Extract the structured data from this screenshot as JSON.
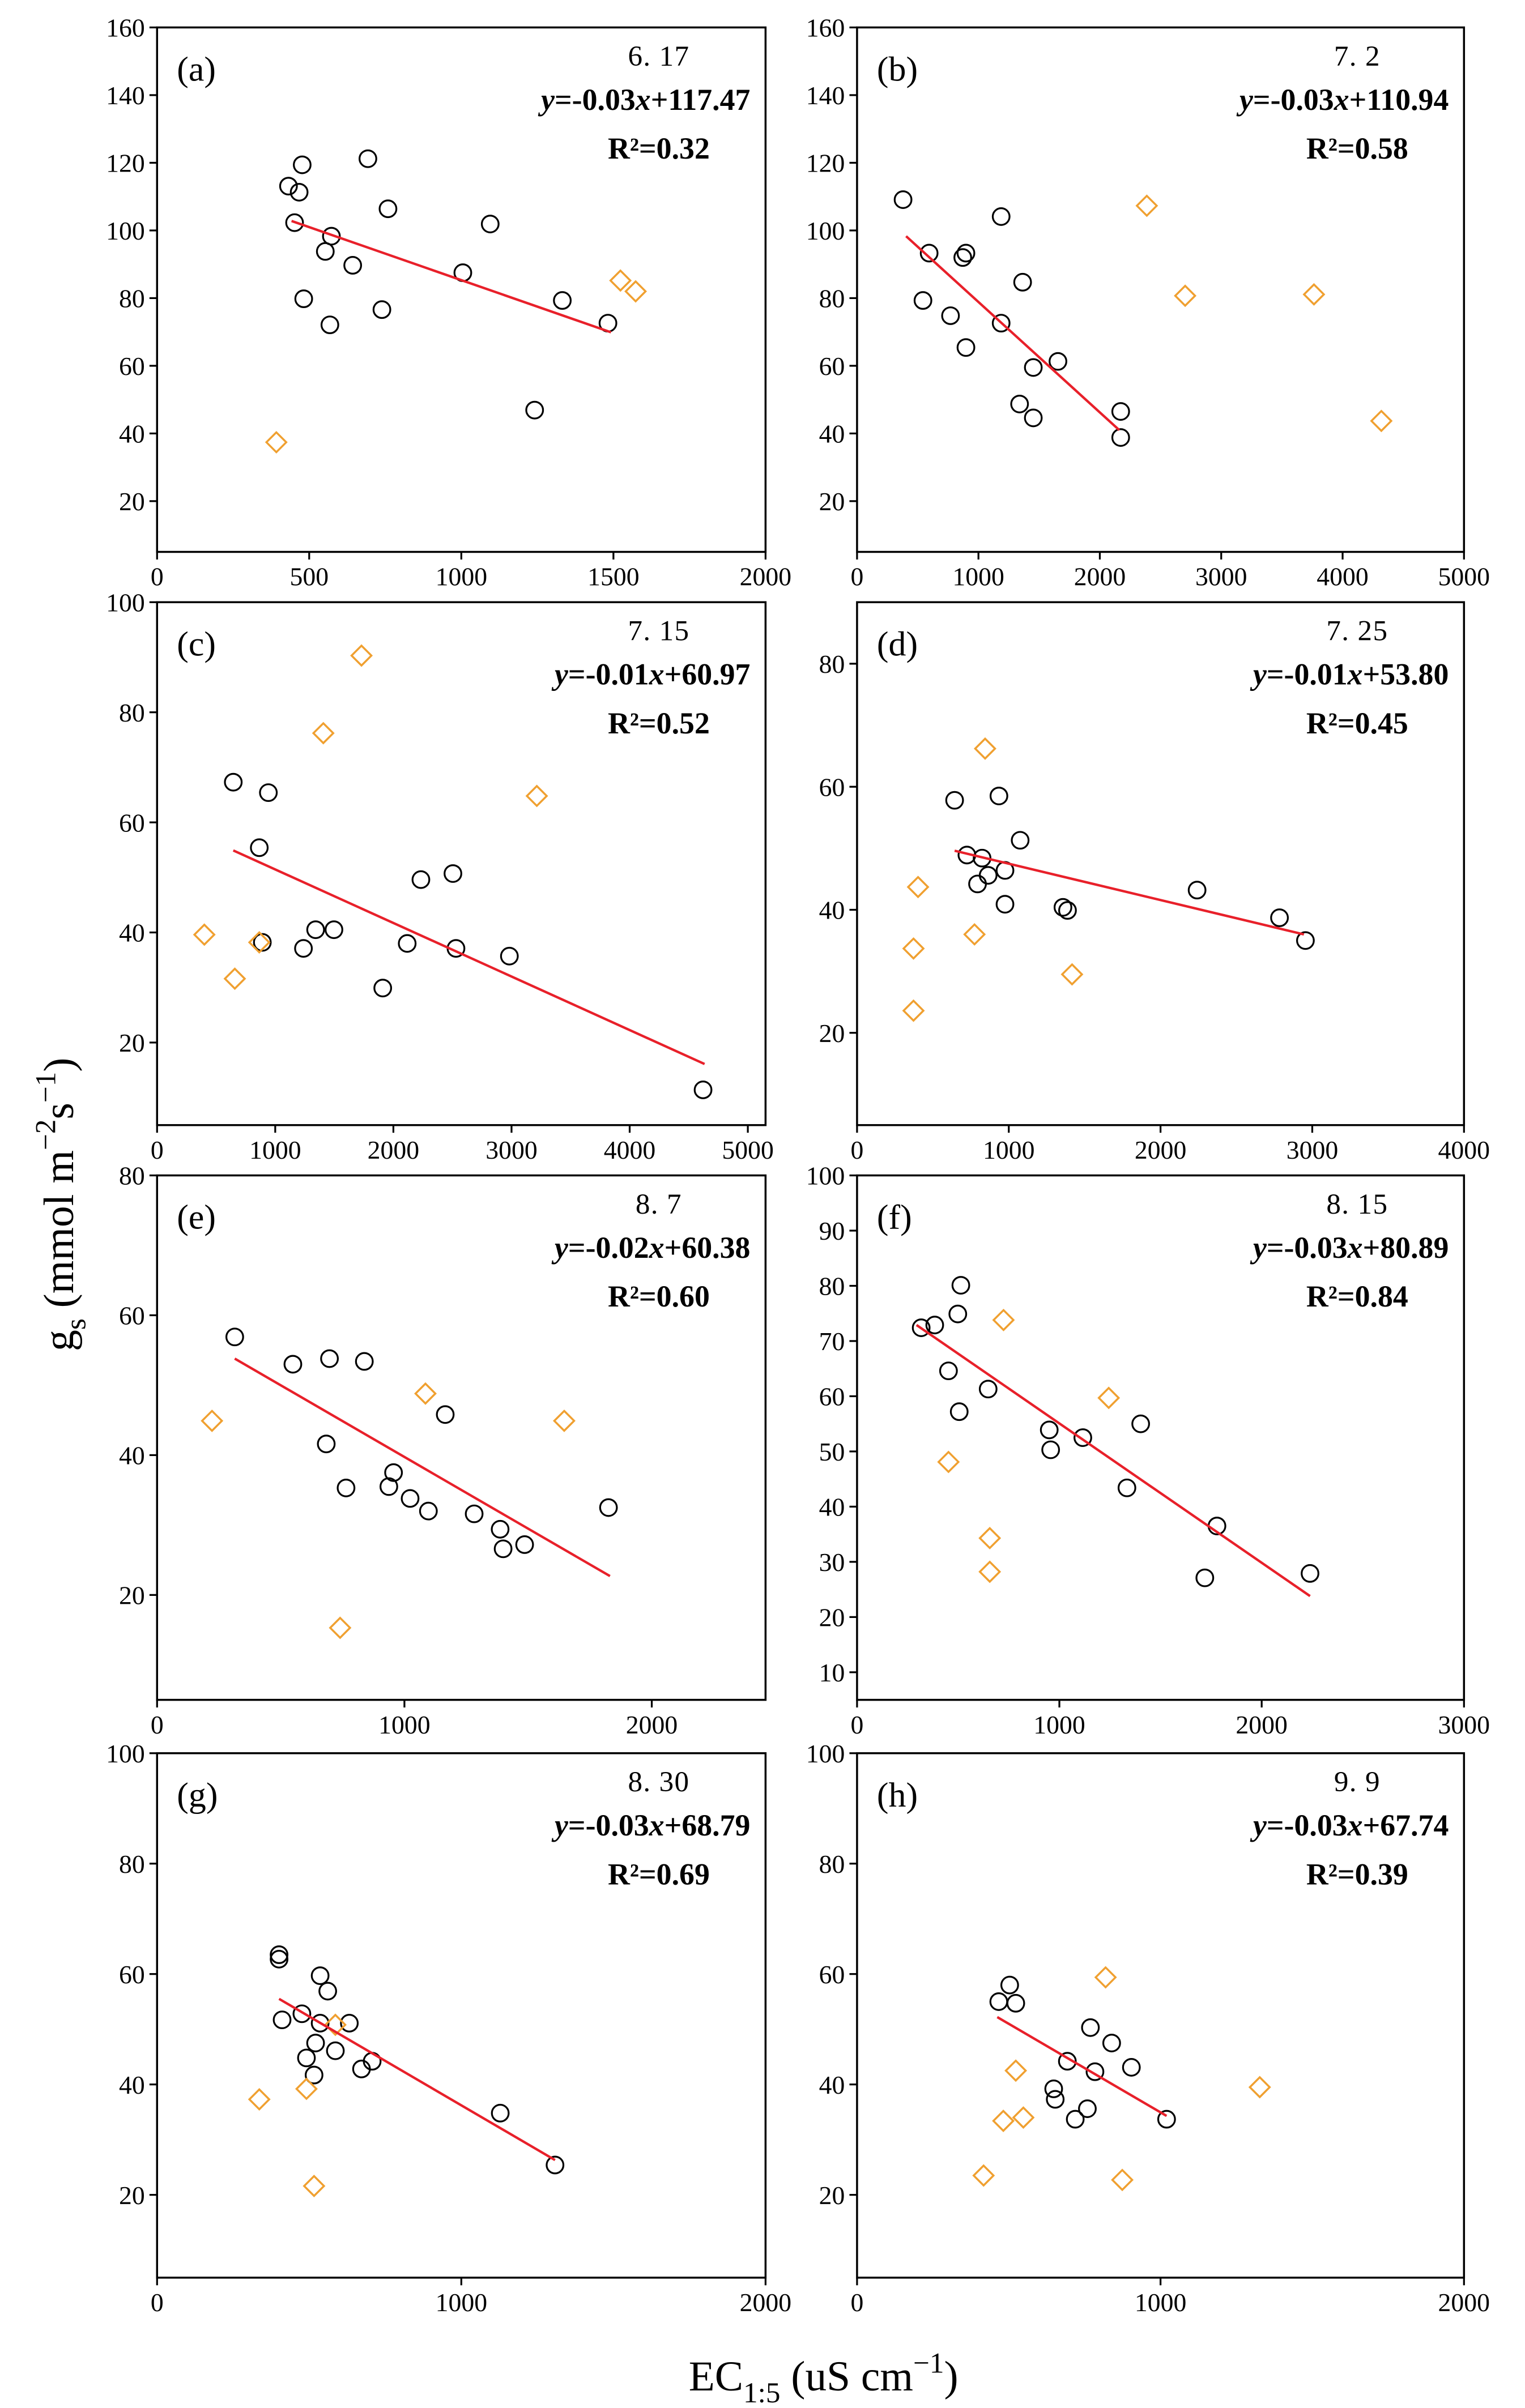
{
  "figure": {
    "ylabel": [
      {
        "t": "g"
      },
      {
        "t": "s",
        "sub": true
      },
      {
        "t": " (mmol m"
      },
      {
        "t": "−2",
        "sup": true
      },
      {
        "t": "s"
      },
      {
        "t": "−1",
        "sup": true
      },
      {
        "t": ")"
      }
    ],
    "xlabel": [
      {
        "t": "EC"
      },
      {
        "t": "1:5",
        "sub": true
      },
      {
        "t": " (uS cm"
      },
      {
        "t": "−1",
        "sup": true
      },
      {
        "t": ")"
      }
    ],
    "colors": {
      "circle": "#000000",
      "diamond": "#F0A030",
      "fit": "#E8202A"
    }
  },
  "chart_data": [
    {
      "type": "scatter",
      "panel": "(a)",
      "date": "6. 17",
      "equation": [
        {
          "t": "y",
          "italic": true
        },
        {
          "t": "=-0.03"
        },
        {
          "t": "x",
          "italic": true
        },
        {
          "t": "+117.47"
        }
      ],
      "r2": "R²=0.32",
      "xlim": [
        0,
        2000
      ],
      "ylim": [
        5,
        160
      ],
      "xticks": [
        0,
        500,
        1000,
        1500,
        2000
      ],
      "yticks": [
        20,
        40,
        60,
        80,
        100,
        120,
        140,
        160
      ],
      "circles": [
        [
          432,
          113.1
        ],
        [
          477,
          119.4
        ],
        [
          467,
          111.3
        ],
        [
          452,
          102.3
        ],
        [
          693,
          121.2
        ],
        [
          573,
          98.3
        ],
        [
          553,
          93.8
        ],
        [
          643,
          89.7
        ],
        [
          759,
          106.4
        ],
        [
          482,
          79.8
        ],
        [
          568,
          72.1
        ],
        [
          739,
          76.6
        ],
        [
          1005,
          87.5
        ],
        [
          1095,
          101.9
        ],
        [
          1332,
          79.3
        ],
        [
          1482,
          72.6
        ],
        [
          1241,
          46.9
        ]
      ],
      "diamonds": [
        [
          392,
          37.4
        ],
        [
          1523,
          85.2
        ],
        [
          1573,
          82.0
        ]
      ],
      "fit_line": {
        "x": [
          442,
          1492
        ],
        "y": [
          102.8,
          69.9
        ]
      }
    },
    {
      "type": "scatter",
      "panel": "(b)",
      "date": "7. 2",
      "equation": [
        {
          "t": "y",
          "italic": true
        },
        {
          "t": "=-0.03"
        },
        {
          "t": "x",
          "italic": true
        },
        {
          "t": "+110.94"
        }
      ],
      "r2": "R²=0.58",
      "xlim": [
        0,
        5000
      ],
      "ylim": [
        5,
        160
      ],
      "xticks": [
        0,
        1000,
        2000,
        3000,
        4000,
        5000
      ],
      "yticks": [
        20,
        40,
        60,
        80,
        100,
        120,
        140,
        160
      ],
      "circles": [
        [
          379,
          109.1
        ],
        [
          543,
          79.3
        ],
        [
          594,
          93.3
        ],
        [
          770,
          74.8
        ],
        [
          871,
          92.0
        ],
        [
          897,
          93.3
        ],
        [
          897,
          65.4
        ],
        [
          1187,
          104.1
        ],
        [
          1187,
          72.6
        ],
        [
          1364,
          84.7
        ],
        [
          1452,
          59.5
        ],
        [
          1655,
          61.3
        ],
        [
          1339,
          48.7
        ],
        [
          1452,
          44.6
        ],
        [
          2172,
          46.5
        ],
        [
          2172,
          38.8
        ]
      ],
      "diamonds": [
        [
          2387,
          107.3
        ],
        [
          2703,
          80.7
        ],
        [
          3764,
          81.1
        ],
        [
          4319,
          43.7
        ]
      ],
      "fit_line": {
        "x": [
          404,
          2160
        ],
        "y": [
          98.3,
          41.0
        ]
      }
    },
    {
      "type": "scatter",
      "panel": "(c)",
      "date": "7. 15",
      "equation": [
        {
          "t": "y",
          "italic": true
        },
        {
          "t": "=-0.01"
        },
        {
          "t": "x",
          "italic": true
        },
        {
          "t": "+60.97"
        }
      ],
      "r2": "R²=0.52",
      "xlim": [
        0,
        5150
      ],
      "ylim": [
        5,
        100
      ],
      "xticks": [
        0,
        1000,
        2000,
        3000,
        4000,
        5000
      ],
      "yticks": [
        20,
        40,
        60,
        80,
        100
      ],
      "circles": [
        [
          645,
          67.3
        ],
        [
          942,
          65.4
        ],
        [
          865,
          55.4
        ],
        [
          891,
          38.2
        ],
        [
          1239,
          37.1
        ],
        [
          1342,
          40.5
        ],
        [
          1497,
          40.5
        ],
        [
          1910,
          29.9
        ],
        [
          2117,
          38.0
        ],
        [
          2233,
          49.6
        ],
        [
          2504,
          50.7
        ],
        [
          2530,
          37.1
        ],
        [
          2982,
          35.7
        ],
        [
          4621,
          11.4
        ]
      ],
      "diamonds": [
        [
          400,
          39.6
        ],
        [
          658,
          31.6
        ],
        [
          865,
          38.2
        ],
        [
          1407,
          76.2
        ],
        [
          1730,
          90.3
        ],
        [
          3214,
          64.8
        ]
      ],
      "fit_line": {
        "x": [
          645,
          4634
        ],
        "y": [
          54.9,
          16.1
        ]
      }
    },
    {
      "type": "scatter",
      "panel": "(d)",
      "date": "7. 25",
      "equation": [
        {
          "t": "y",
          "italic": true
        },
        {
          "t": "=-0.01"
        },
        {
          "t": "x",
          "italic": true
        },
        {
          "t": "+53.80"
        }
      ],
      "r2": "R²=0.45",
      "xlim": [
        0,
        4000
      ],
      "ylim": [
        5,
        90
      ],
      "xticks": [
        0,
        1000,
        2000,
        3000,
        4000
      ],
      "yticks": [
        20,
        40,
        60,
        80
      ],
      "circles": [
        [
          643,
          57.8
        ],
        [
          724,
          48.9
        ],
        [
          824,
          48.4
        ],
        [
          794,
          44.2
        ],
        [
          864,
          45.6
        ],
        [
          935,
          58.5
        ],
        [
          975,
          46.4
        ],
        [
          975,
          40.9
        ],
        [
          1075,
          51.3
        ],
        [
          1357,
          40.4
        ],
        [
          1387,
          39.9
        ],
        [
          2241,
          43.2
        ],
        [
          2784,
          38.7
        ],
        [
          2955,
          35.0
        ]
      ],
      "diamonds": [
        [
          844,
          66.2
        ],
        [
          402,
          43.7
        ],
        [
          372,
          33.7
        ],
        [
          372,
          23.6
        ],
        [
          774,
          36.0
        ],
        [
          1417,
          29.5
        ]
      ],
      "fit_line": {
        "x": [
          643,
          2945
        ],
        "y": [
          49.6,
          36.0
        ]
      }
    },
    {
      "type": "scatter",
      "panel": "(e)",
      "date": "8. 7",
      "equation": [
        {
          "t": "y",
          "italic": true
        },
        {
          "t": "=-0.02"
        },
        {
          "t": "x",
          "italic": true
        },
        {
          "t": "+60.38"
        }
      ],
      "r2": "R²=0.60",
      "xlim": [
        0,
        2460
      ],
      "ylim": [
        5,
        80
      ],
      "xticks": [
        0,
        1000,
        2000
      ],
      "yticks": [
        20,
        40,
        60,
        80
      ],
      "circles": [
        [
          314,
          56.9
        ],
        [
          549,
          53.0
        ],
        [
          697,
          53.8
        ],
        [
          838,
          53.4
        ],
        [
          684,
          41.6
        ],
        [
          764,
          35.3
        ],
        [
          956,
          37.5
        ],
        [
          937,
          35.5
        ],
        [
          1023,
          33.8
        ],
        [
          1097,
          32.0
        ],
        [
          1165,
          45.8
        ],
        [
          1282,
          31.6
        ],
        [
          1387,
          29.4
        ],
        [
          1399,
          26.6
        ],
        [
          1486,
          27.2
        ],
        [
          1825,
          32.5
        ]
      ],
      "diamonds": [
        [
          222,
          44.9
        ],
        [
          1085,
          48.8
        ],
        [
          1646,
          44.9
        ],
        [
          740,
          15.3
        ]
      ],
      "fit_line": {
        "x": [
          314,
          1831
        ],
        "y": [
          53.8,
          22.7
        ]
      }
    },
    {
      "type": "scatter",
      "panel": "(f)",
      "date": "8. 15",
      "equation": [
        {
          "t": "y",
          "italic": true
        },
        {
          "t": "=-0.03"
        },
        {
          "t": "x",
          "italic": true
        },
        {
          "t": "+80.89"
        }
      ],
      "r2": "R²=0.84",
      "xlim": [
        0,
        3000
      ],
      "ylim": [
        5,
        100
      ],
      "xticks": [
        0,
        1000,
        2000,
        3000
      ],
      "yticks": [
        10,
        20,
        30,
        40,
        50,
        60,
        70,
        80,
        90,
        100
      ],
      "circles": [
        [
          317,
          72.4
        ],
        [
          384,
          72.9
        ],
        [
          513,
          80.1
        ],
        [
          498,
          74.9
        ],
        [
          452,
          64.6
        ],
        [
          505,
          57.2
        ],
        [
          648,
          61.3
        ],
        [
          950,
          53.9
        ],
        [
          957,
          50.3
        ],
        [
          1116,
          52.5
        ],
        [
          1402,
          55.0
        ],
        [
          1334,
          43.4
        ],
        [
          1779,
          36.5
        ],
        [
          1719,
          27.1
        ],
        [
          2239,
          27.9
        ]
      ],
      "diamonds": [
        [
          724,
          73.8
        ],
        [
          1244,
          59.7
        ],
        [
          452,
          48.1
        ],
        [
          656,
          34.3
        ],
        [
          656,
          28.2
        ]
      ],
      "fit_line": {
        "x": [
          294,
          2239
        ],
        "y": [
          72.9,
          23.8
        ]
      }
    },
    {
      "type": "scatter",
      "panel": "(g)",
      "date": "8. 30",
      "equation": [
        {
          "t": "y",
          "italic": true
        },
        {
          "t": "=-0.03"
        },
        {
          "t": "x",
          "italic": true
        },
        {
          "t": "+68.79"
        }
      ],
      "r2": "R²=0.69",
      "xlim": [
        0,
        2000
      ],
      "ylim": [
        5,
        100
      ],
      "xticks": [
        0,
        1000,
        2000
      ],
      "yticks": [
        20,
        40,
        60,
        80,
        100
      ],
      "circles": [
        [
          401,
          63.5
        ],
        [
          401,
          62.7
        ],
        [
          411,
          51.7
        ],
        [
          476,
          52.8
        ],
        [
          536,
          59.7
        ],
        [
          561,
          56.9
        ],
        [
          536,
          51.1
        ],
        [
          521,
          47.5
        ],
        [
          491,
          44.8
        ],
        [
          586,
          46.1
        ],
        [
          632,
          51.1
        ],
        [
          516,
          41.7
        ],
        [
          672,
          42.8
        ],
        [
          707,
          44.2
        ],
        [
          1128,
          34.8
        ],
        [
          1308,
          25.4
        ]
      ],
      "diamonds": [
        [
          336,
          37.3
        ],
        [
          491,
          39.2
        ],
        [
          586,
          50.8
        ],
        [
          516,
          21.6
        ]
      ],
      "fit_line": {
        "x": [
          401,
          1308
        ],
        "y": [
          55.5,
          26.3
        ]
      }
    },
    {
      "type": "scatter",
      "panel": "(h)",
      "date": "9. 9",
      "equation": [
        {
          "t": "y",
          "italic": true
        },
        {
          "t": "=-0.03"
        },
        {
          "t": "x",
          "italic": true
        },
        {
          "t": "+67.74"
        }
      ],
      "r2": "R²=0.39",
      "xlim": [
        0,
        2000
      ],
      "ylim": [
        5,
        100
      ],
      "xticks": [
        0,
        1000,
        2000
      ],
      "yticks": [
        20,
        40,
        60,
        80,
        100
      ],
      "circles": [
        [
          467,
          55.0
        ],
        [
          503,
          58.0
        ],
        [
          523,
          54.7
        ],
        [
          648,
          39.2
        ],
        [
          653,
          37.3
        ],
        [
          693,
          44.2
        ],
        [
          719,
          33.7
        ],
        [
          759,
          35.6
        ],
        [
          769,
          50.3
        ],
        [
          784,
          42.3
        ],
        [
          839,
          47.5
        ],
        [
          904,
          43.1
        ],
        [
          1020,
          33.7
        ]
      ],
      "diamonds": [
        [
          523,
          42.5
        ],
        [
          482,
          33.4
        ],
        [
          548,
          34.0
        ],
        [
          417,
          23.5
        ],
        [
          819,
          59.4
        ],
        [
          874,
          22.7
        ],
        [
          1327,
          39.5
        ]
      ],
      "fit_line": {
        "x": [
          462,
          1020
        ],
        "y": [
          52.2,
          34.3
        ]
      }
    }
  ]
}
